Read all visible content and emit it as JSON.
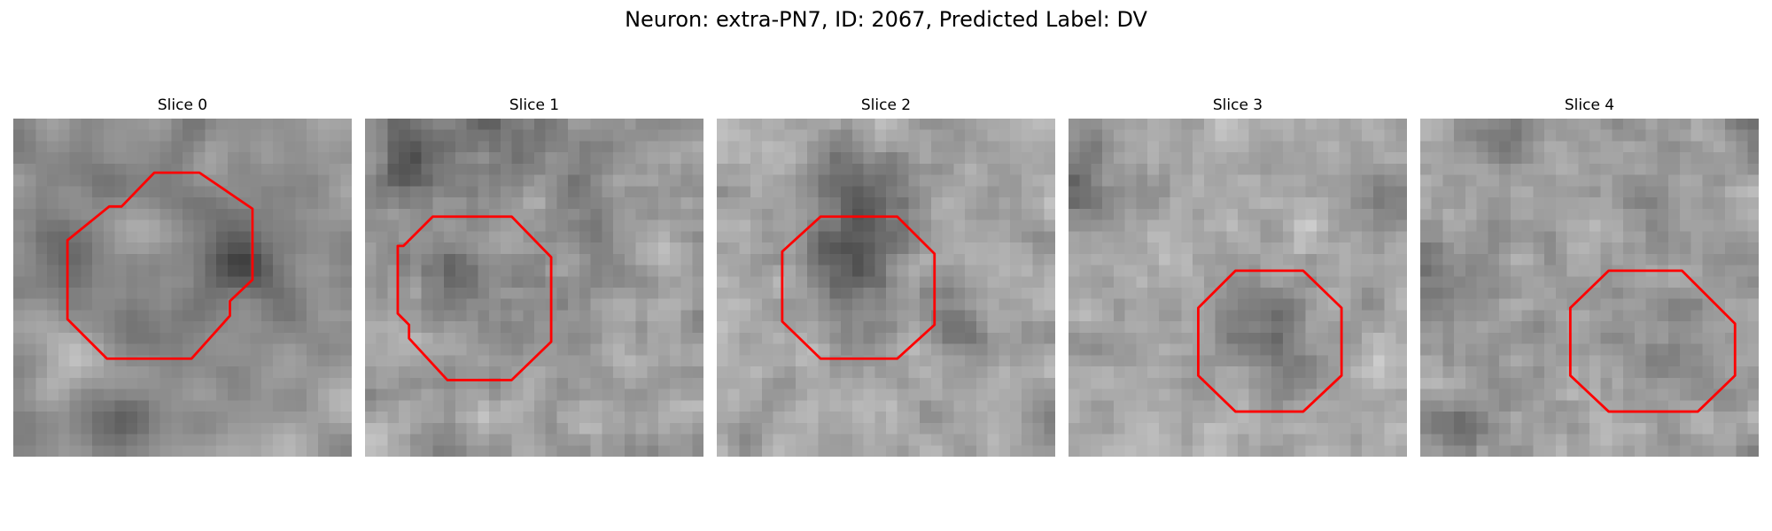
{
  "figure": {
    "title": "Neuron: extra-PN7, ID: 2067, Predicted Label: DV"
  },
  "panels": [
    {
      "title": "Slice 0",
      "seed": 11,
      "base": 150,
      "noise": 36,
      "blur": 2,
      "blobs": [
        {
          "cx": 10.5,
          "cy": 11.5,
          "r": 8.0,
          "d": -55
        },
        {
          "cx": 10.5,
          "cy": 11.5,
          "r": 4.8,
          "d": 65
        },
        {
          "cx": 20.0,
          "cy": 12.5,
          "r": 3.0,
          "d": -60
        },
        {
          "cx": 5.5,
          "cy": 20.0,
          "r": 3.0,
          "d": 45
        },
        {
          "cx": 9.0,
          "cy": 28.0,
          "r": 3.5,
          "d": -40
        }
      ]
    },
    {
      "title": "Slice 1",
      "seed": 22,
      "base": 158,
      "noise": 42,
      "blur": 1,
      "blobs": [
        {
          "cx": 13.0,
          "cy": 8.0,
          "r": 9.0,
          "d": -45
        },
        {
          "cx": 13.0,
          "cy": 9.0,
          "r": 5.0,
          "d": 45
        },
        {
          "cx": 4.0,
          "cy": 4.0,
          "r": 3.0,
          "d": -60
        },
        {
          "cx": 8.5,
          "cy": 14.0,
          "r": 3.0,
          "d": -30
        }
      ]
    },
    {
      "title": "Slice 2",
      "seed": 33,
      "base": 165,
      "noise": 40,
      "blur": 1,
      "blobs": [
        {
          "cx": 12.0,
          "cy": 12.0,
          "r": 5.0,
          "d": -80
        },
        {
          "cx": 13.0,
          "cy": 5.0,
          "r": 4.0,
          "d": -50
        },
        {
          "cx": 21.0,
          "cy": 18.0,
          "r": 2.5,
          "d": -40
        }
      ]
    },
    {
      "title": "Slice 3",
      "seed": 44,
      "base": 170,
      "noise": 38,
      "blur": 1,
      "blobs": [
        {
          "cx": 17.5,
          "cy": 19.0,
          "r": 4.8,
          "d": -55
        },
        {
          "cx": 1.5,
          "cy": 6.0,
          "r": 4.0,
          "d": -60
        },
        {
          "cx": 27.0,
          "cy": 7.0,
          "r": 3.5,
          "d": -45
        }
      ]
    },
    {
      "title": "Slice 4",
      "seed": 55,
      "base": 160,
      "noise": 42,
      "blur": 1,
      "blobs": [
        {
          "cx": 20.0,
          "cy": 19.0,
          "r": 4.5,
          "d": -25
        },
        {
          "cx": 2.0,
          "cy": 14.0,
          "r": 4.0,
          "d": -40
        },
        {
          "cx": 8.0,
          "cy": 2.0,
          "r": 3.0,
          "d": -35
        },
        {
          "cx": 3.0,
          "cy": 27.0,
          "r": 3.0,
          "d": -30
        }
      ]
    }
  ],
  "colors": {
    "outline": "#ff0000",
    "background": "#ffffff"
  },
  "icons": {
    "outline_shape": "octagon"
  }
}
